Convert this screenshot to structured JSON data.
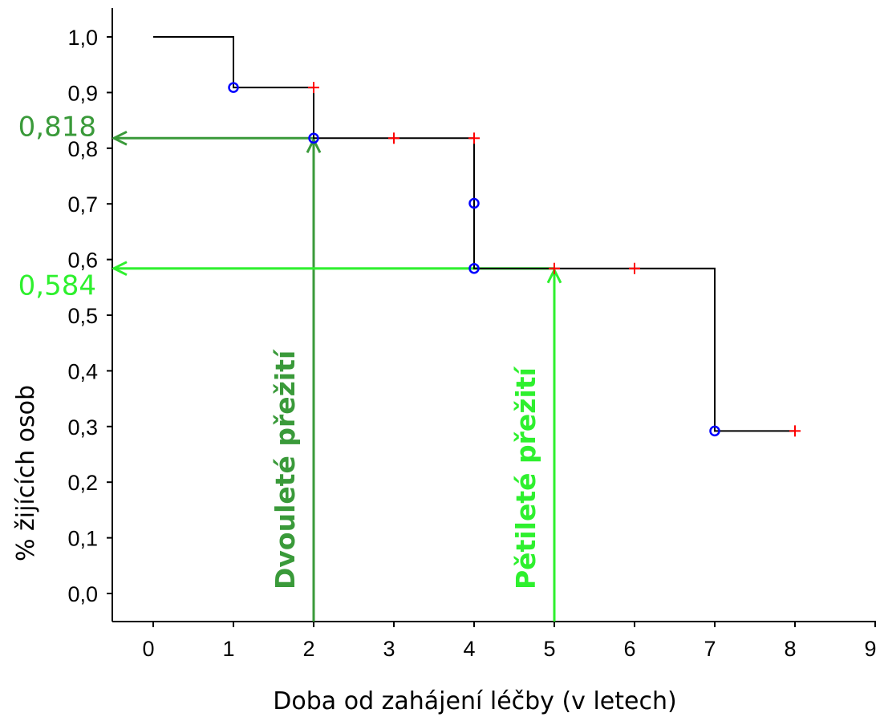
{
  "chart_data": {
    "type": "line",
    "title": "",
    "xlabel": "Doba od zahájení léčby (v letech)",
    "ylabel": "% žijících osob",
    "xlim": [
      -0.5,
      9
    ],
    "ylim": [
      -0.05,
      1.05
    ],
    "x_ticks": [
      "0",
      "1",
      "2",
      "3",
      "4",
      "5",
      "6",
      "7",
      "8",
      "9"
    ],
    "y_ticks": [
      "0,0",
      "0,1",
      "0,2",
      "0,3",
      "0,4",
      "0,5",
      "0,6",
      "0,7",
      "0,8",
      "0,9",
      "1,0"
    ],
    "grid": false,
    "series": [
      {
        "line_color": "#000000",
        "steps": [
          {
            "x": 0,
            "y": 1.0
          },
          {
            "x": 1,
            "y": 0.909
          },
          {
            "x": 2,
            "y": 0.818
          },
          {
            "x": 4,
            "y": 0.584
          },
          {
            "x": 7,
            "y": 0.292
          },
          {
            "x": 8,
            "y": 0.292
          }
        ],
        "events": {
          "color": "#0000ff",
          "marker": "circle",
          "points": [
            [
              1,
              0.909
            ],
            [
              2,
              0.818
            ],
            [
              4,
              0.701
            ],
            [
              4,
              0.584
            ],
            [
              7,
              0.292
            ]
          ]
        },
        "censored": {
          "color": "#ff0000",
          "marker": "plus",
          "points": [
            [
              2,
              0.909
            ],
            [
              3,
              0.818
            ],
            [
              4,
              0.818
            ],
            [
              5,
              0.584
            ],
            [
              6,
              0.584
            ],
            [
              8,
              0.292
            ]
          ]
        }
      }
    ],
    "annotations": [
      {
        "label": "Dvouleté přežití",
        "x": 2,
        "y": 0.818,
        "value_text": "0,818",
        "color": "#3a9a3a"
      },
      {
        "label": "Pětileté přežití",
        "x": 5,
        "y": 0.584,
        "value_text": "0,584",
        "color": "#2ef02e"
      }
    ]
  }
}
